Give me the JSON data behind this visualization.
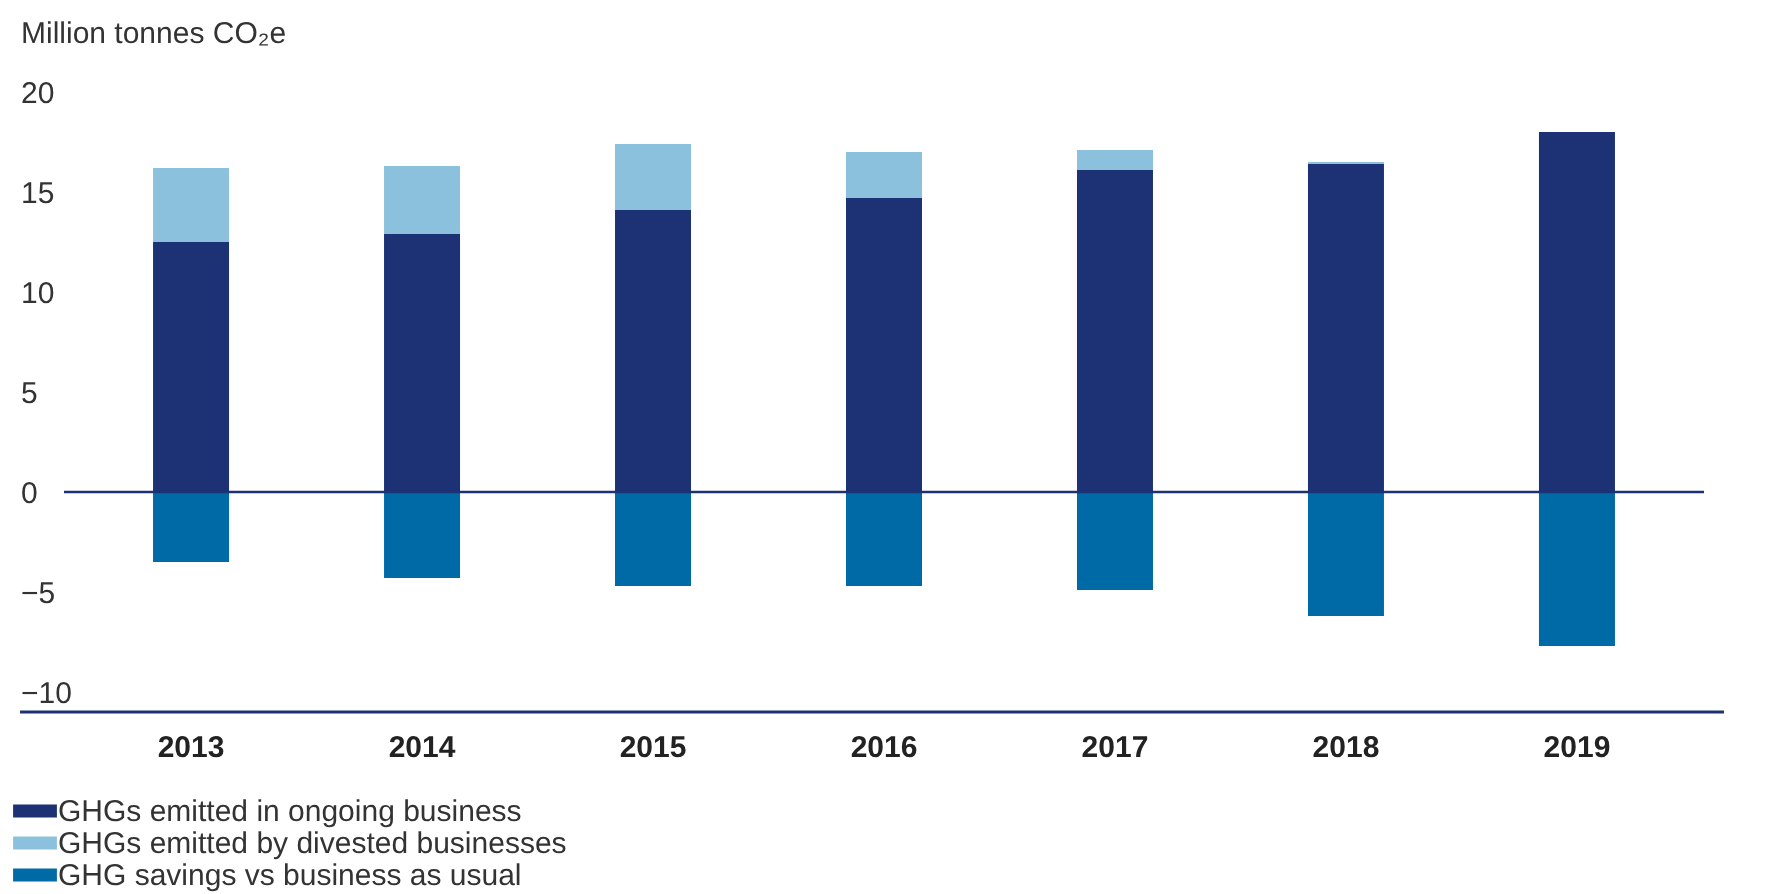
{
  "chart_data": {
    "type": "bar",
    "stacked": true,
    "ylabel": "Million tonnes CO₂e",
    "categories": [
      "2013",
      "2014",
      "2015",
      "2016",
      "2017",
      "2018",
      "2019"
    ],
    "series": [
      {
        "name": "GHGs emitted in ongoing business",
        "color": "#1c3274",
        "values": [
          12.5,
          12.9,
          14.1,
          14.7,
          16.1,
          16.4,
          18.0
        ]
      },
      {
        "name": "GHGs emitted by divested businesses",
        "color": "#8bc1dd",
        "values": [
          3.7,
          3.4,
          3.3,
          2.3,
          1.0,
          0.1,
          null
        ]
      },
      {
        "name": "GHG savings vs business as usual",
        "color": "#006aa7",
        "values": [
          -3.5,
          -4.3,
          -4.7,
          -4.7,
          -4.9,
          -6.2,
          -7.7
        ]
      }
    ],
    "ylim": [
      -11,
      20
    ],
    "yticks": [
      -10,
      -5,
      0,
      5,
      10,
      15,
      20
    ],
    "ref_lines": [
      {
        "axis": "y",
        "value": 0,
        "label": null,
        "color": "#1c3274"
      }
    ],
    "grid": false,
    "legend": "bottom left"
  }
}
